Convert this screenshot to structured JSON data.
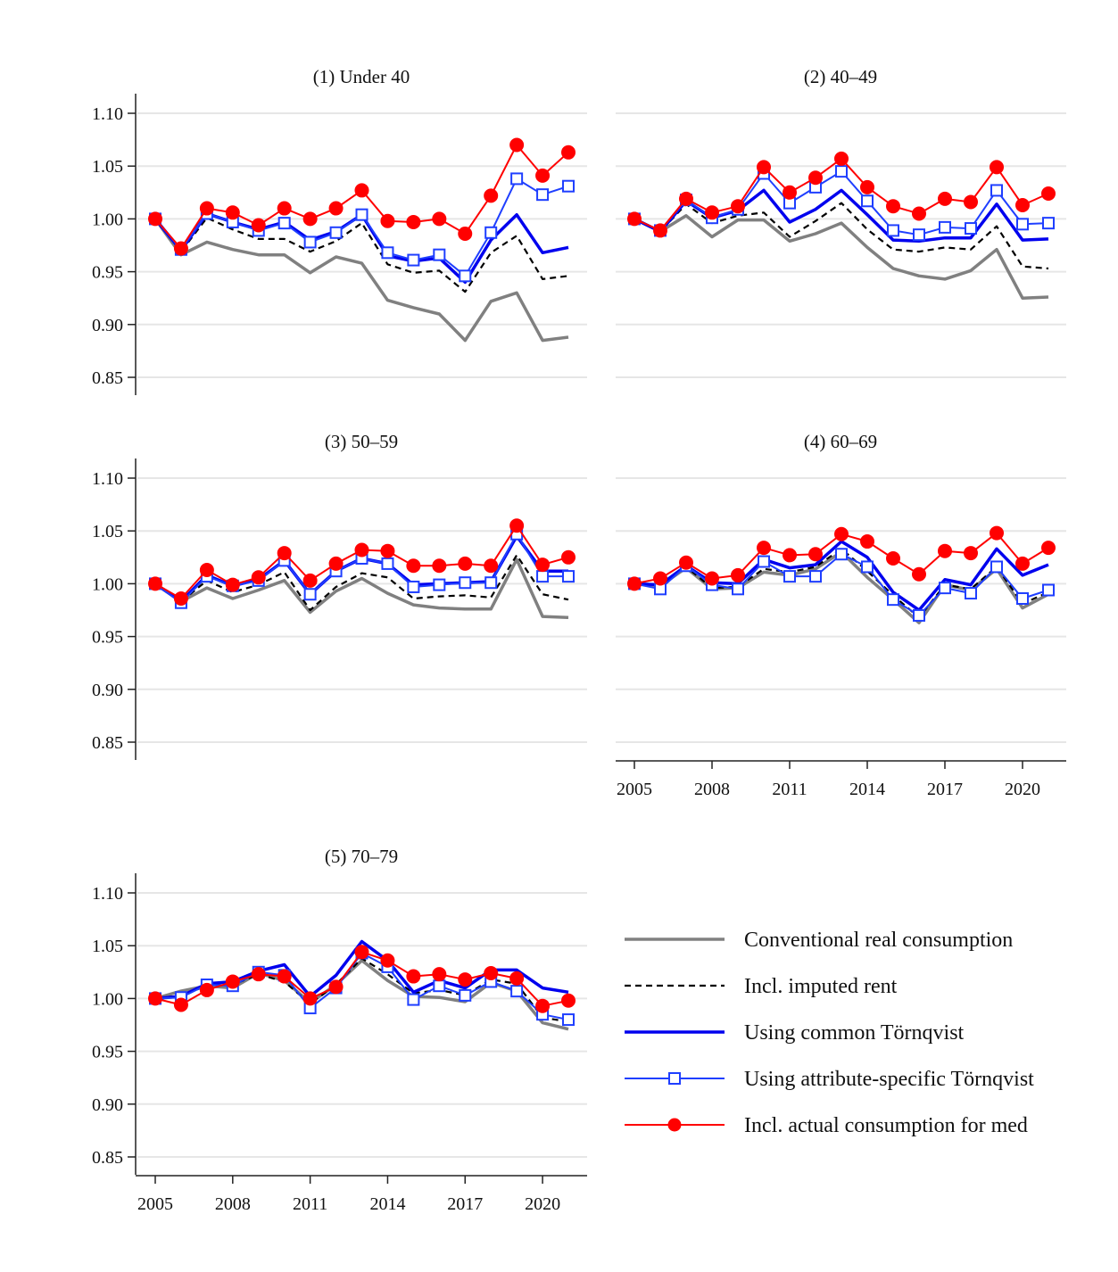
{
  "colors": {
    "conventional": "#808080",
    "imputed_rent": "#000000",
    "common_tornqvist": "#0000ee",
    "attribute_tornqvist": "#1f3fff",
    "actual_med": "#ff0000",
    "grid": "#e6e6e6",
    "axis": "#222222"
  },
  "legend": [
    {
      "series": "conventional",
      "label": "Conventional real consumption"
    },
    {
      "series": "imputed_rent",
      "label": "Incl. imputed rent"
    },
    {
      "series": "common_tornqvist",
      "label": "Using common Törnqvist"
    },
    {
      "series": "attribute_tornqvist",
      "label": "Using attribute-specific Törnqvist"
    },
    {
      "series": "actual_med",
      "label": "Incl. actual consumption for med"
    }
  ],
  "chart_data": [
    {
      "type": "line",
      "title": "(1) Under 40",
      "x": [
        2005,
        2006,
        2007,
        2008,
        2009,
        2010,
        2011,
        2012,
        2013,
        2014,
        2015,
        2016,
        2017,
        2018,
        2019,
        2020,
        2021
      ],
      "xticks": [
        2005,
        2008,
        2011,
        2014,
        2017,
        2020
      ],
      "yticks": [
        "0.85",
        "0.90",
        "0.95",
        "1.00",
        "1.05",
        "1.10"
      ],
      "ylim": [
        0.85,
        1.1
      ],
      "grid": true,
      "series": [
        {
          "name": "Conventional real consumption",
          "key": "conventional",
          "values": [
            1.0,
            0.966,
            0.978,
            0.971,
            0.966,
            0.966,
            0.949,
            0.964,
            0.958,
            0.923,
            0.916,
            0.91,
            0.885,
            0.922,
            0.93,
            0.885,
            0.888
          ]
        },
        {
          "name": "Incl. imputed rent",
          "key": "imputed_rent",
          "values": [
            1.0,
            0.969,
            1.001,
            0.99,
            0.981,
            0.981,
            0.969,
            0.979,
            0.996,
            0.957,
            0.949,
            0.951,
            0.931,
            0.968,
            0.984,
            0.943,
            0.946
          ]
        },
        {
          "name": "Using common Törnqvist",
          "key": "common_tornqvist",
          "values": [
            1.0,
            0.97,
            1.005,
            0.997,
            0.99,
            0.997,
            0.98,
            0.988,
            1.004,
            0.965,
            0.96,
            0.963,
            0.94,
            0.98,
            1.004,
            0.968,
            0.973
          ]
        },
        {
          "name": "Using attribute-specific Törnqvist",
          "key": "attribute_tornqvist",
          "values": [
            1.0,
            0.971,
            1.005,
            0.997,
            0.989,
            0.996,
            0.978,
            0.987,
            1.004,
            0.968,
            0.961,
            0.966,
            0.946,
            0.987,
            1.038,
            1.023,
            1.031
          ]
        },
        {
          "name": "Incl. actual consumption for med",
          "key": "actual_med",
          "values": [
            1.0,
            0.972,
            1.01,
            1.006,
            0.994,
            1.01,
            1.0,
            1.01,
            1.027,
            0.998,
            0.997,
            1.0,
            0.986,
            1.022,
            1.07,
            1.041,
            1.063
          ]
        }
      ]
    },
    {
      "type": "line",
      "title": "(2) 40–49",
      "x": [
        2005,
        2006,
        2007,
        2008,
        2009,
        2010,
        2011,
        2012,
        2013,
        2014,
        2015,
        2016,
        2017,
        2018,
        2019,
        2020,
        2021
      ],
      "xticks": [
        2005,
        2008,
        2011,
        2014,
        2017,
        2020
      ],
      "yticks": [
        "0.85",
        "0.90",
        "0.95",
        "1.00",
        "1.05",
        "1.10"
      ],
      "ylim": [
        0.85,
        1.1
      ],
      "grid": true,
      "series": [
        {
          "name": "Conventional real consumption",
          "key": "conventional",
          "values": [
            1.0,
            0.988,
            1.003,
            0.983,
            0.999,
            0.999,
            0.979,
            0.986,
            0.996,
            0.973,
            0.953,
            0.946,
            0.943,
            0.951,
            0.971,
            0.925,
            0.926
          ]
        },
        {
          "name": "Incl. imputed rent",
          "key": "imputed_rent",
          "values": [
            1.0,
            0.988,
            1.014,
            0.996,
            1.003,
            1.006,
            0.983,
            0.998,
            1.015,
            0.99,
            0.971,
            0.969,
            0.973,
            0.971,
            0.993,
            0.955,
            0.953
          ]
        },
        {
          "name": "Using common Törnqvist",
          "key": "common_tornqvist",
          "values": [
            1.0,
            0.988,
            1.017,
            1.001,
            1.008,
            1.027,
            0.997,
            1.009,
            1.027,
            1.004,
            0.98,
            0.979,
            0.982,
            0.982,
            1.014,
            0.98,
            0.981
          ]
        },
        {
          "name": "Using attribute-specific Törnqvist",
          "key": "attribute_tornqvist",
          "values": [
            1.0,
            0.989,
            1.018,
            1.001,
            1.009,
            1.043,
            1.015,
            1.03,
            1.045,
            1.017,
            0.989,
            0.985,
            0.992,
            0.991,
            1.027,
            0.995,
            0.996
          ]
        },
        {
          "name": "Incl. actual consumption for med",
          "key": "actual_med",
          "values": [
            1.0,
            0.989,
            1.019,
            1.006,
            1.012,
            1.049,
            1.025,
            1.039,
            1.057,
            1.03,
            1.012,
            1.005,
            1.019,
            1.016,
            1.049,
            1.013,
            1.024
          ]
        }
      ]
    },
    {
      "type": "line",
      "title": "(3) 50–59",
      "x": [
        2005,
        2006,
        2007,
        2008,
        2009,
        2010,
        2011,
        2012,
        2013,
        2014,
        2015,
        2016,
        2017,
        2018,
        2019,
        2020,
        2021
      ],
      "xticks": [
        2005,
        2008,
        2011,
        2014,
        2017,
        2020
      ],
      "yticks": [
        "0.85",
        "0.90",
        "0.95",
        "1.00",
        "1.05",
        "1.10"
      ],
      "ylim": [
        0.85,
        1.1
      ],
      "grid": true,
      "series": [
        {
          "name": "Conventional real consumption",
          "key": "conventional",
          "values": [
            1.0,
            0.983,
            0.996,
            0.986,
            0.994,
            1.003,
            0.973,
            0.993,
            1.005,
            0.991,
            0.98,
            0.977,
            0.976,
            0.976,
            1.023,
            0.969,
            0.968
          ]
        },
        {
          "name": "Incl. imputed rent",
          "key": "imputed_rent",
          "values": [
            1.0,
            0.983,
            1.003,
            0.992,
            0.999,
            1.011,
            0.975,
            0.997,
            1.01,
            1.006,
            0.986,
            0.988,
            0.989,
            0.987,
            1.027,
            0.99,
            0.985
          ]
        },
        {
          "name": "Using common Törnqvist",
          "key": "common_tornqvist",
          "values": [
            1.0,
            0.983,
            1.008,
            0.998,
            1.004,
            1.022,
            0.99,
            1.012,
            1.024,
            1.019,
            0.999,
            1.0,
            1.001,
            1.002,
            1.045,
            1.012,
            1.012
          ]
        },
        {
          "name": "Using attribute-specific Törnqvist",
          "key": "attribute_tornqvist",
          "values": [
            1.0,
            0.982,
            1.007,
            0.998,
            1.003,
            1.022,
            0.99,
            1.012,
            1.024,
            1.019,
            0.997,
            0.999,
            1.001,
            1.001,
            1.047,
            1.007,
            1.007
          ]
        },
        {
          "name": "Incl. actual consumption for med",
          "key": "actual_med",
          "values": [
            1.0,
            0.986,
            1.013,
            0.999,
            1.006,
            1.029,
            1.003,
            1.019,
            1.032,
            1.031,
            1.017,
            1.017,
            1.019,
            1.017,
            1.055,
            1.018,
            1.025
          ]
        }
      ]
    },
    {
      "type": "line",
      "title": "(4) 60–69",
      "x": [
        2005,
        2006,
        2007,
        2008,
        2009,
        2010,
        2011,
        2012,
        2013,
        2014,
        2015,
        2016,
        2017,
        2018,
        2019,
        2020,
        2021
      ],
      "xticks": [
        2005,
        2008,
        2011,
        2014,
        2017,
        2020
      ],
      "yticks": [
        "0.85",
        "0.90",
        "0.95",
        "1.00",
        "1.05",
        "1.10"
      ],
      "ylim": [
        0.85,
        1.1
      ],
      "grid": true,
      "series": [
        {
          "name": "Conventional real consumption",
          "key": "conventional",
          "values": [
            1.0,
            0.998,
            1.015,
            0.995,
            0.996,
            1.011,
            1.008,
            1.014,
            1.03,
            1.006,
            0.985,
            0.963,
            0.999,
            0.994,
            1.014,
            0.977,
            0.99
          ]
        },
        {
          "name": "Incl. imputed rent",
          "key": "imputed_rent",
          "values": [
            1.0,
            0.999,
            1.016,
            0.996,
            0.997,
            1.014,
            1.011,
            1.016,
            1.033,
            1.012,
            0.989,
            0.968,
            0.999,
            0.995,
            1.016,
            0.981,
            0.992
          ]
        },
        {
          "name": "Using common Törnqvist",
          "key": "common_tornqvist",
          "values": [
            1.0,
            0.999,
            1.017,
            1.001,
            1.0,
            1.023,
            1.015,
            1.018,
            1.04,
            1.025,
            0.992,
            0.975,
            1.004,
            0.999,
            1.033,
            1.008,
            1.018
          ]
        },
        {
          "name": "Using attribute-specific Törnqvist",
          "key": "attribute_tornqvist",
          "values": [
            1.0,
            0.995,
            1.017,
            0.999,
            0.995,
            1.021,
            1.007,
            1.007,
            1.028,
            1.016,
            0.985,
            0.97,
            0.996,
            0.991,
            1.016,
            0.986,
            0.994
          ]
        },
        {
          "name": "Incl. actual consumption for med",
          "key": "actual_med",
          "values": [
            1.0,
            1.005,
            1.02,
            1.005,
            1.008,
            1.034,
            1.027,
            1.028,
            1.047,
            1.04,
            1.024,
            1.009,
            1.031,
            1.029,
            1.048,
            1.019,
            1.034
          ]
        }
      ]
    },
    {
      "type": "line",
      "title": "(5) 70–79",
      "x": [
        2005,
        2006,
        2007,
        2008,
        2009,
        2010,
        2011,
        2012,
        2013,
        2014,
        2015,
        2016,
        2017,
        2018,
        2019,
        2020,
        2021
      ],
      "xticks": [
        2005,
        2008,
        2011,
        2014,
        2017,
        2020
      ],
      "yticks": [
        "0.85",
        "0.90",
        "0.95",
        "1.00",
        "1.05",
        "1.10"
      ],
      "ylim": [
        0.85,
        1.1
      ],
      "grid": true,
      "series": [
        {
          "name": "Conventional real consumption",
          "key": "conventional",
          "values": [
            1.0,
            1.007,
            1.012,
            1.01,
            1.024,
            1.017,
            0.996,
            1.013,
            1.036,
            1.017,
            1.002,
            1.001,
            0.997,
            1.015,
            1.007,
            0.977,
            0.971
          ]
        },
        {
          "name": "Incl. imputed rent",
          "key": "imputed_rent",
          "values": [
            1.0,
            1.003,
            1.012,
            1.013,
            1.023,
            1.016,
            0.995,
            1.013,
            1.038,
            1.023,
            1.005,
            1.008,
            1.003,
            1.018,
            1.014,
            0.982,
            0.978
          ]
        },
        {
          "name": "Using common Törnqvist",
          "key": "common_tornqvist",
          "values": [
            1.0,
            1.002,
            1.014,
            1.016,
            1.026,
            1.032,
            1.002,
            1.022,
            1.054,
            1.036,
            1.006,
            1.017,
            1.01,
            1.027,
            1.027,
            1.01,
            1.006
          ]
        },
        {
          "name": "Using attribute-specific Törnqvist",
          "key": "attribute_tornqvist",
          "values": [
            1.0,
            1.001,
            1.013,
            1.012,
            1.025,
            1.022,
            0.991,
            1.01,
            1.043,
            1.03,
            0.999,
            1.012,
            1.003,
            1.016,
            1.007,
            0.985,
            0.98
          ]
        },
        {
          "name": "Incl. actual consumption for med",
          "key": "actual_med",
          "values": [
            1.0,
            0.994,
            1.008,
            1.016,
            1.023,
            1.021,
            1.0,
            1.011,
            1.044,
            1.036,
            1.021,
            1.023,
            1.018,
            1.024,
            1.019,
            0.993,
            0.998
          ]
        }
      ]
    }
  ]
}
